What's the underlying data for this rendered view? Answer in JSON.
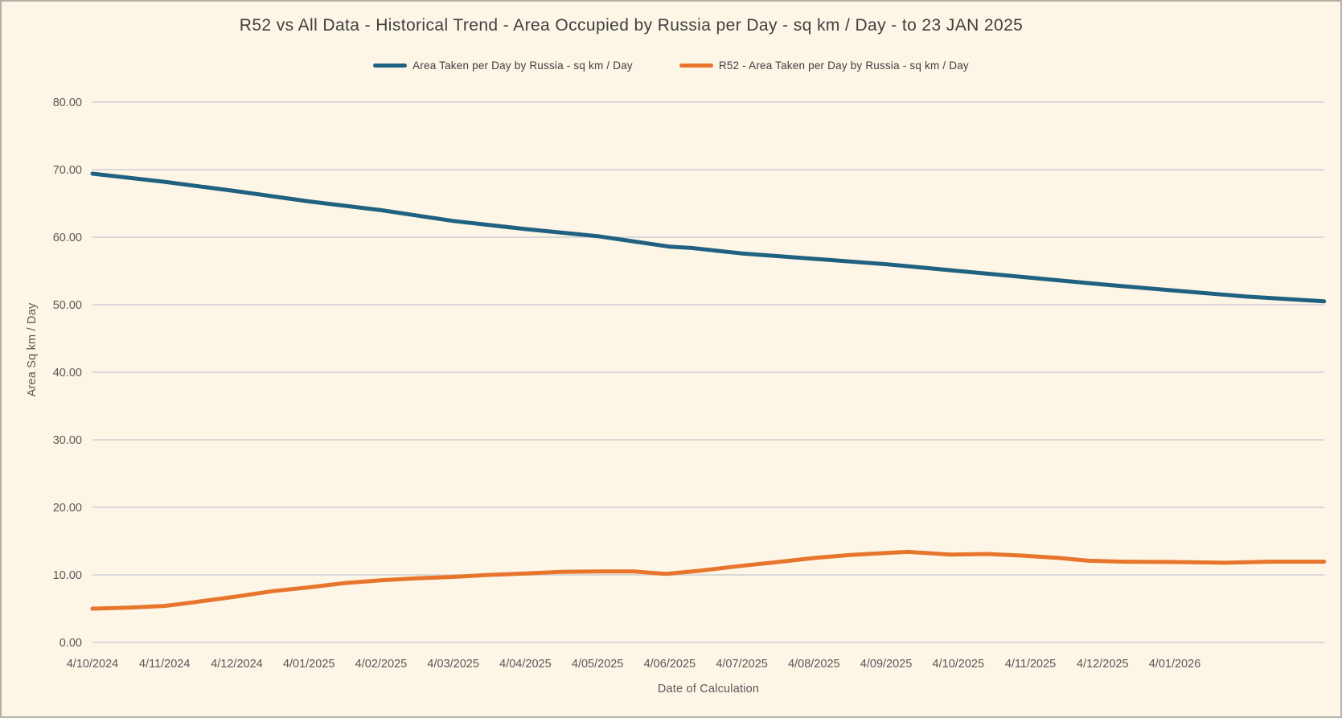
{
  "title": "R52 vs All Data - Historical Trend - Area Occupied by Russia per Day - sq km / Day - to 23 JAN 2025",
  "legend": [
    {
      "label": "Area Taken per Day by Russia - sq km / Day",
      "color": "#1F6180"
    },
    {
      "label": "R52 - Area Taken per Day by Russia - sq km / Day",
      "color": "#E8752C"
    }
  ],
  "axes": {
    "x_title": "Date of Calculation",
    "y_title": "Area Sq km / Day",
    "y_ticks": [
      "0.00",
      "10.00",
      "20.00",
      "30.00",
      "40.00",
      "50.00",
      "60.00",
      "70.00",
      "80.00"
    ],
    "x_ticks": [
      "4/10/2024",
      "4/11/2024",
      "4/12/2024",
      "4/01/2025",
      "4/02/2025",
      "4/03/2025",
      "4/04/2025",
      "4/05/2025",
      "4/06/2025",
      "4/07/2025",
      "4/08/2025",
      "4/09/2025",
      "4/10/2025",
      "4/11/2025",
      "4/12/2025",
      "4/01/2026"
    ]
  },
  "colors": {
    "background": "#FDF5E6",
    "gridline": "#D9D9D9",
    "title_text": "#3F4040",
    "axis_text": "#595959",
    "series_blue": "#1F6180",
    "series_orange": "#E8752C"
  },
  "chart_data": {
    "type": "line",
    "title": "R52 vs All Data - Historical Trend - Area Occupied by Russia per Day - sq km / Day - to 23 JAN 2025",
    "xlabel": "Date of Calculation",
    "ylabel": "Area Sq km / Day",
    "ylim": [
      0,
      80
    ],
    "y_tick_step": 10,
    "grid": "horizontal",
    "legend_position": "top",
    "x_tick_labels": [
      "4/10/2024",
      "4/11/2024",
      "4/12/2024",
      "4/01/2025",
      "4/02/2025",
      "4/03/2025",
      "4/04/2025",
      "4/05/2025",
      "4/06/2025",
      "4/07/2025",
      "4/08/2025",
      "4/09/2025",
      "4/10/2025",
      "4/11/2025",
      "4/12/2025",
      "4/01/2026"
    ],
    "x_unit": "months after first tick (4/10/2024); data extends ~1 month past last tick",
    "x_range": [
      0,
      17.07
    ],
    "series": [
      {
        "name": "Area Taken per Day by Russia - sq km / Day",
        "color": "#1F6180",
        "points": [
          [
            0,
            69.4
          ],
          [
            1,
            68.2
          ],
          [
            2,
            66.8
          ],
          [
            3,
            65.3
          ],
          [
            4,
            64.0
          ],
          [
            5,
            62.4
          ],
          [
            6,
            61.2
          ],
          [
            7,
            60.15
          ],
          [
            8,
            58.6
          ],
          [
            8.3,
            58.4
          ],
          [
            9,
            57.6
          ],
          [
            10,
            56.8
          ],
          [
            11,
            56.0
          ],
          [
            12,
            55.0
          ],
          [
            13,
            54.0
          ],
          [
            14,
            53.0
          ],
          [
            15,
            52.1
          ],
          [
            16,
            51.2
          ],
          [
            17.07,
            50.5
          ]
        ]
      },
      {
        "name": "R52 - Area Taken per Day by Russia - sq km / Day",
        "color": "#E8752C",
        "points": [
          [
            0,
            5.0
          ],
          [
            0.5,
            5.15
          ],
          [
            1,
            5.4
          ],
          [
            1.3,
            5.8
          ],
          [
            2,
            6.8
          ],
          [
            2.5,
            7.6
          ],
          [
            3,
            8.15
          ],
          [
            3.5,
            8.8
          ],
          [
            4,
            9.2
          ],
          [
            4.5,
            9.5
          ],
          [
            5,
            9.7
          ],
          [
            5.5,
            10.0
          ],
          [
            6,
            10.2
          ],
          [
            6.5,
            10.45
          ],
          [
            7,
            10.5
          ],
          [
            7.5,
            10.5
          ],
          [
            7.95,
            10.15
          ],
          [
            8.4,
            10.6
          ],
          [
            9,
            11.35
          ],
          [
            9.5,
            11.9
          ],
          [
            10,
            12.5
          ],
          [
            10.5,
            12.95
          ],
          [
            11,
            13.25
          ],
          [
            11.3,
            13.4
          ],
          [
            11.9,
            13.0
          ],
          [
            12.4,
            13.1
          ],
          [
            12.9,
            12.85
          ],
          [
            13.4,
            12.5
          ],
          [
            13.8,
            12.1
          ],
          [
            14.3,
            11.95
          ],
          [
            15,
            11.9
          ],
          [
            15.7,
            11.8
          ],
          [
            16.3,
            11.95
          ],
          [
            17.07,
            11.95
          ]
        ]
      }
    ]
  }
}
